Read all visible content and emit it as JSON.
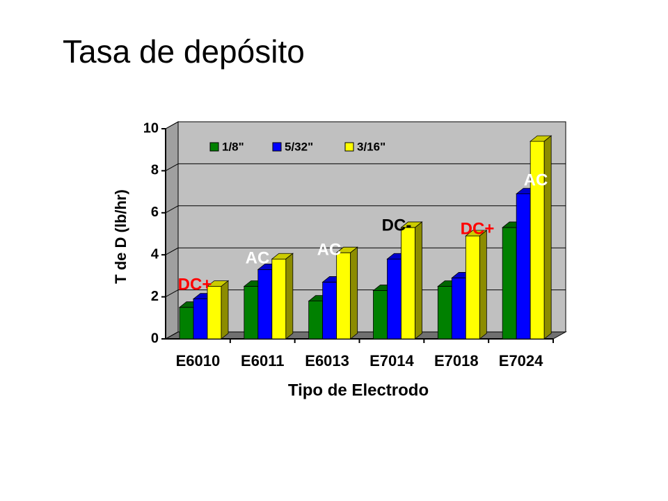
{
  "chart_data": {
    "type": "bar3d",
    "title": "Tasa de depósito",
    "x_label": "Tipo de Electrodo",
    "y_label": "T de D (lb/hr)",
    "categories": [
      "E6010",
      "E6011",
      "E6013",
      "E7014",
      "E7018",
      "E7024"
    ],
    "series": [
      {
        "name": "1/8\"",
        "color": "#008000",
        "values": [
          1.5,
          2.5,
          1.8,
          2.3,
          2.5,
          5.3
        ]
      },
      {
        "name": "5/32\"",
        "color": "#0000ff",
        "values": [
          1.9,
          3.3,
          2.7,
          3.8,
          2.9,
          6.9
        ]
      },
      {
        "name": "3/16\"",
        "color": "#ffff00",
        "values": [
          2.5,
          3.8,
          4.1,
          5.3,
          4.9,
          9.4
        ]
      }
    ],
    "annotations": [
      {
        "text": "DC+",
        "color": "#ff0000"
      },
      {
        "text": "AC",
        "color": "#ffffff"
      },
      {
        "text": "AC",
        "color": "#ffffff"
      },
      {
        "text": "DC-",
        "color": "#000000"
      },
      {
        "text": "DC+",
        "color": "#ff0000"
      },
      {
        "text": "AC",
        "color": "#ffffff"
      }
    ],
    "ylim": [
      0,
      10
    ],
    "yticks": [
      0,
      2,
      4,
      6,
      8,
      10
    ],
    "grid": true,
    "legend": "top"
  }
}
